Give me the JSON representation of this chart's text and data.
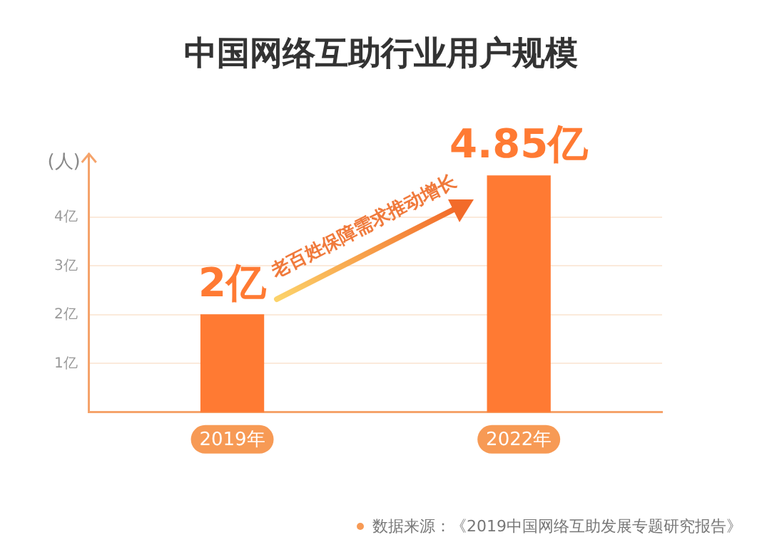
{
  "chart_data": {
    "type": "bar",
    "title": "中国网络互助行业用户规模",
    "ylabel": "(人)",
    "categories": [
      "2019年",
      "2022年"
    ],
    "values": [
      2,
      4.85
    ],
    "value_labels": [
      "2亿",
      "4.85亿"
    ],
    "color": "#ff7a33",
    "ylim": [
      0,
      5.3
    ],
    "yticks": [
      {
        "value": 1,
        "label": "1亿"
      },
      {
        "value": 2,
        "label": "2亿"
      },
      {
        "value": 3,
        "label": "3亿"
      },
      {
        "value": 4,
        "label": "4亿"
      }
    ],
    "grid": "y",
    "annotations": [
      "老百姓保障需求推动增长",
      "数据来源：《2019中国网络互助发展专题研究报告》"
    ]
  }
}
